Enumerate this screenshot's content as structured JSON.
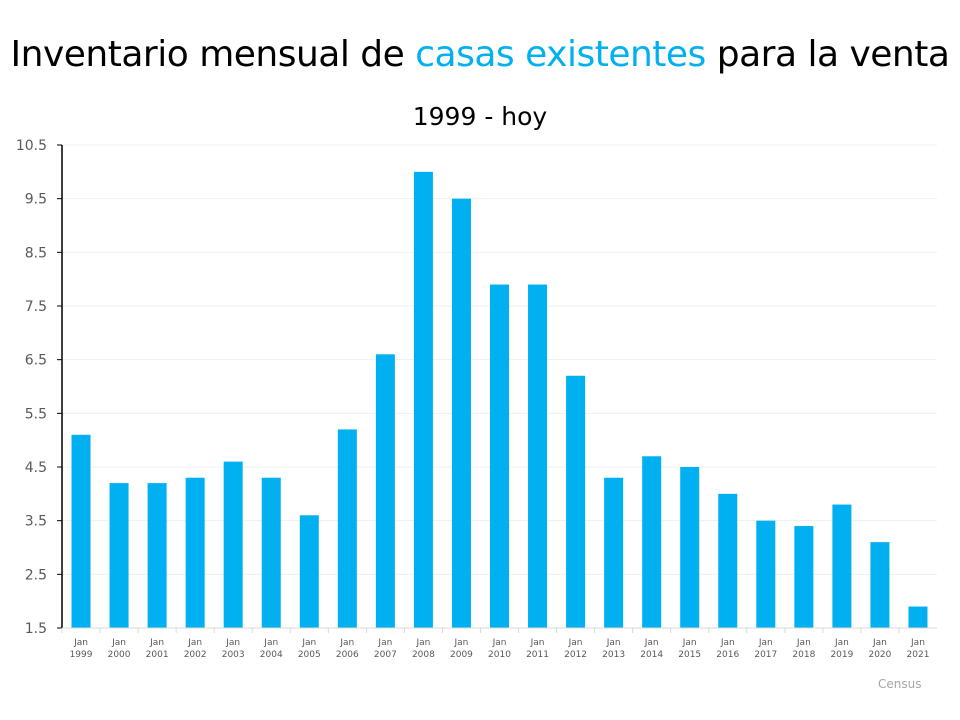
{
  "title": {
    "part1": "Inventario mensual de ",
    "highlight": "casas existentes",
    "part2": " para la venta"
  },
  "subtitle": "1999 - hoy",
  "source": "Census",
  "colors": {
    "bar": "#00b0f0",
    "highlight": "#00b0f0"
  },
  "chart_data": {
    "type": "bar",
    "title": "Inventario mensual de casas existentes para la venta",
    "subtitle": "1999 - hoy",
    "categories": [
      "Jan 1999",
      "Jan 2000",
      "Jan 2001",
      "Jan 2002",
      "Jan 2003",
      "Jan 2004",
      "Jan 2005",
      "Jan 2006",
      "Jan 2007",
      "Jan 2008",
      "Jan 2009",
      "Jan 2010",
      "Jan 2011",
      "Jan 2012",
      "Jan 2013",
      "Jan 2014",
      "Jan 2015",
      "Jan 2016",
      "Jan 2017",
      "Jan 2018",
      "Jan 2019",
      "Jan 2020",
      "Jan 2021"
    ],
    "values": [
      5.1,
      4.2,
      4.2,
      4.3,
      4.6,
      4.3,
      3.6,
      5.2,
      6.6,
      10.0,
      9.5,
      7.9,
      7.9,
      6.2,
      4.3,
      4.7,
      4.5,
      4.0,
      3.5,
      3.4,
      3.8,
      3.1,
      1.9
    ],
    "yticks": [
      "1.5",
      "2.5",
      "3.5",
      "4.5",
      "5.5",
      "6.5",
      "7.5",
      "8.5",
      "9.5",
      "10.5"
    ],
    "ylim": [
      1.5,
      10.5
    ],
    "xlabel": "",
    "ylabel": "",
    "grid": true,
    "legend": "none"
  }
}
